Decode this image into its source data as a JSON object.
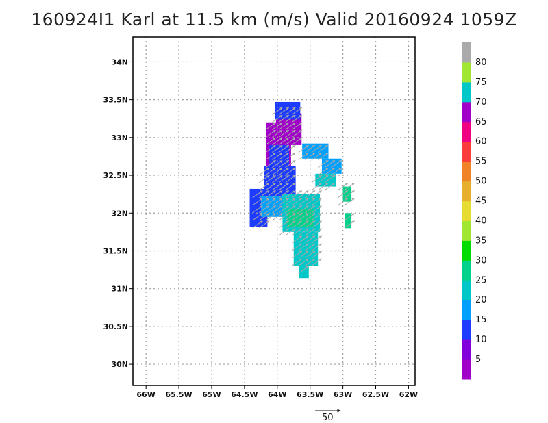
{
  "title": "160924I1 Karl at 11.5 km (m/s) Valid 20160924 1059Z",
  "colors": {
    "grid": "#a0a0a0",
    "frame": "#000000",
    "vector": "#a8a8a8"
  },
  "chart_data": {
    "type": "heatmap",
    "title": "160924I1 Karl at 11.5 km (m/s) Valid 20160924 1059Z",
    "x_range": [
      -66.2,
      -61.9
    ],
    "y_range": [
      29.72,
      34.33
    ],
    "x_ticks": [
      {
        "v": -66,
        "label": "66W"
      },
      {
        "v": -65.5,
        "label": "65.5W"
      },
      {
        "v": -65,
        "label": "65W"
      },
      {
        "v": -64.5,
        "label": "64.5W"
      },
      {
        "v": -64,
        "label": "64W"
      },
      {
        "v": -63.5,
        "label": "63.5W"
      },
      {
        "v": -63,
        "label": "63W"
      },
      {
        "v": -62.5,
        "label": "62.5W"
      },
      {
        "v": -62,
        "label": "62W"
      }
    ],
    "y_ticks": [
      {
        "v": 30,
        "label": "30N"
      },
      {
        "v": 30.5,
        "label": "30.5N"
      },
      {
        "v": 31,
        "label": "31N"
      },
      {
        "v": 31.5,
        "label": "31.5N"
      },
      {
        "v": 32,
        "label": "32N"
      },
      {
        "v": 32.5,
        "label": "32.5N"
      },
      {
        "v": 33,
        "label": "33N"
      },
      {
        "v": 33.5,
        "label": "33.5N"
      },
      {
        "v": 34,
        "label": "34N"
      }
    ],
    "grid": true,
    "colorbar": {
      "labels": [
        "5",
        "10",
        "15",
        "20",
        "25",
        "30",
        "35",
        "40",
        "45",
        "50",
        "55",
        "60",
        "65",
        "70",
        "75",
        "80"
      ],
      "colors": [
        "#a000c8",
        "#8200dc",
        "#1e3cff",
        "#00a0ff",
        "#00c8c8",
        "#00d28c",
        "#00dc00",
        "#a0e632",
        "#e6dc32",
        "#e6af2d",
        "#f08228",
        "#fa3c3c",
        "#f00082",
        "#a000c8",
        "#00c8c8",
        "#a0e632",
        "#aaaaaa"
      ]
    },
    "regions": [
      {
        "speed": 5,
        "color": "#a000c8",
        "lon": [
          -64.17,
          -63.79
        ],
        "lat": [
          32.62,
          33.2
        ]
      },
      {
        "speed": 5,
        "color": "#a000c8",
        "lon": [
          -64.02,
          -63.63
        ],
        "lat": [
          32.9,
          33.32
        ]
      },
      {
        "speed": 10,
        "color": "#1e3cff",
        "lon": [
          -64.03,
          -63.65
        ],
        "lat": [
          33.24,
          33.47
        ]
      },
      {
        "speed": 10,
        "color": "#1e3cff",
        "lon": [
          -64.2,
          -63.72
        ],
        "lat": [
          32.22,
          32.62
        ]
      },
      {
        "speed": 10,
        "color": "#1e3cff",
        "lon": [
          -64.42,
          -64.15
        ],
        "lat": [
          31.82,
          32.32
        ]
      },
      {
        "speed": 10,
        "color": "#1e3cff",
        "lon": [
          -64.12,
          -63.82
        ],
        "lat": [
          32.35,
          32.9
        ]
      },
      {
        "speed": 15,
        "color": "#00a0ff",
        "lon": [
          -64.25,
          -63.65
        ],
        "lat": [
          31.95,
          32.22
        ]
      },
      {
        "speed": 15,
        "color": "#00a0ff",
        "lon": [
          -63.62,
          -63.22
        ],
        "lat": [
          32.72,
          32.92
        ]
      },
      {
        "speed": 15,
        "color": "#00a0ff",
        "lon": [
          -63.32,
          -63.02
        ],
        "lat": [
          32.52,
          32.72
        ]
      },
      {
        "speed": 20,
        "color": "#00c8c8",
        "lon": [
          -63.92,
          -63.35
        ],
        "lat": [
          31.75,
          32.25
        ]
      },
      {
        "speed": 20,
        "color": "#00c8c8",
        "lon": [
          -63.75,
          -63.38
        ],
        "lat": [
          31.3,
          31.75
        ]
      },
      {
        "speed": 20,
        "color": "#00c8c8",
        "lon": [
          -63.67,
          -63.52
        ],
        "lat": [
          31.14,
          31.3
        ]
      },
      {
        "speed": 20,
        "color": "#00c8c8",
        "lon": [
          -63.42,
          -63.1
        ],
        "lat": [
          32.35,
          32.52
        ]
      },
      {
        "speed": 25,
        "color": "#00d28c",
        "lon": [
          -63.85,
          -63.45
        ],
        "lat": [
          31.82,
          32.05
        ]
      },
      {
        "speed": 25,
        "color": "#00d28c",
        "lon": [
          -63.0,
          -62.87
        ],
        "lat": [
          32.15,
          32.35
        ]
      },
      {
        "speed": 25,
        "color": "#00d28c",
        "lon": [
          -62.97,
          -62.87
        ],
        "lat": [
          31.8,
          32.0
        ]
      }
    ],
    "vectors": {
      "lon_start": -64.3,
      "lon_step": 0.1,
      "lon_count": 17,
      "lat_start": 31.25,
      "lat_step": 0.1,
      "lat_count": 22,
      "direction_deg": 35,
      "reference": {
        "label": "50",
        "speed": 50
      }
    }
  }
}
